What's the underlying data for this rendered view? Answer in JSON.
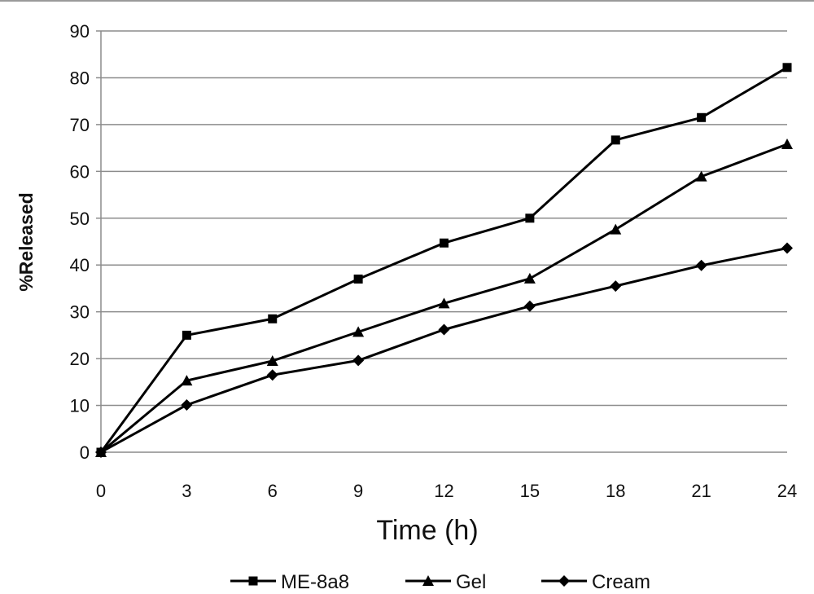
{
  "chart_data": {
    "type": "line",
    "title": "",
    "xlabel": "Time (h)",
    "ylabel": "%Released",
    "x": [
      0,
      3,
      6,
      9,
      12,
      15,
      18,
      21,
      24
    ],
    "xlim": [
      0,
      24
    ],
    "ylim": [
      0,
      90
    ],
    "yticks": [
      0,
      10,
      20,
      30,
      40,
      50,
      60,
      70,
      80,
      90
    ],
    "grid": "horizontal",
    "legend_position": "bottom",
    "series": [
      {
        "name": "ME-8a8",
        "marker": "square",
        "color": "#000000",
        "values": [
          0,
          25,
          28.5,
          37,
          44.7,
          50,
          66.7,
          71.5,
          82.2
        ]
      },
      {
        "name": "Gel",
        "marker": "triangle",
        "color": "#000000",
        "values": [
          0,
          15.3,
          19.5,
          25.7,
          31.8,
          37.1,
          47.6,
          58.9,
          65.8
        ]
      },
      {
        "name": "Cream",
        "marker": "diamond",
        "color": "#000000",
        "values": [
          0,
          10.1,
          16.5,
          19.6,
          26.2,
          31.2,
          35.5,
          39.9,
          43.6
        ]
      }
    ]
  }
}
